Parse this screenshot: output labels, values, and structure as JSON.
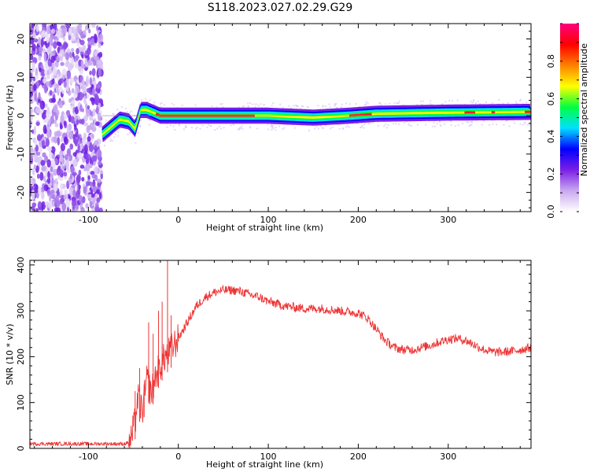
{
  "title": "S118.2023.027.02.29.G29",
  "chart_data": [
    {
      "type": "heatmap",
      "title": "S118.2023.027.02.29.G29",
      "xlabel": "Height of straight line (km)",
      "ylabel": "Frequency (Hz)",
      "xlim": [
        -165,
        392
      ],
      "ylim": [
        -25,
        24
      ],
      "xticks": [
        -100,
        0,
        100,
        200,
        300
      ],
      "yticks": [
        -20,
        -10,
        0,
        10,
        20
      ],
      "colorbar": {
        "label": "Normalized spectral amplitude",
        "range": [
          0,
          1
        ],
        "ticks": [
          0.0,
          0.2,
          0.4,
          0.6,
          0.8
        ],
        "colors": [
          "#ffffff",
          "#c9a8f0",
          "#7a1ee6",
          "#0000ff",
          "#00e0ff",
          "#00ff40",
          "#ffff00",
          "#ff8000",
          "#ff0000",
          "#ff0080"
        ]
      },
      "frequency_track": [
        {
          "x": -85,
          "f": -5
        },
        {
          "x": -75,
          "f": -3
        },
        {
          "x": -65,
          "f": -1
        },
        {
          "x": -55,
          "f": -1.5
        },
        {
          "x": -48,
          "f": -3.5
        },
        {
          "x": -42,
          "f": 1.5
        },
        {
          "x": -35,
          "f": 1.5
        },
        {
          "x": -20,
          "f": 0
        },
        {
          "x": 0,
          "f": 0
        },
        {
          "x": 100,
          "f": 0
        },
        {
          "x": 150,
          "f": -0.5
        },
        {
          "x": 190,
          "f": 0
        },
        {
          "x": 220,
          "f": 0.5
        },
        {
          "x": 300,
          "f": 0.8
        },
        {
          "x": 392,
          "f": 1
        }
      ],
      "noise_region_x": [
        -165,
        -85
      ]
    },
    {
      "type": "line",
      "xlabel": "Height of straight line (km)",
      "ylabel": "SNR (10 * v/v)",
      "xlim": [
        -165,
        392
      ],
      "ylim": [
        0,
        410
      ],
      "xticks": [
        -100,
        0,
        100,
        200,
        300
      ],
      "yticks": [
        0,
        100,
        200,
        300,
        400
      ],
      "color": "#ee3333",
      "series": [
        {
          "x": [
            -165,
            -120,
            -80,
            -60,
            -53,
            -48,
            -45,
            -40,
            -35,
            -30,
            -25,
            -20,
            -15,
            -10,
            -5,
            0,
            10,
            20,
            30,
            40,
            50,
            60,
            70,
            80,
            90,
            100,
            120,
            140,
            160,
            180,
            200,
            210,
            220,
            230,
            240,
            250,
            260,
            270,
            280,
            290,
            300,
            310,
            320,
            330,
            340,
            350,
            360,
            370,
            380,
            392
          ],
          "values": [
            10,
            10,
            10,
            10,
            15,
            60,
            110,
            80,
            150,
            120,
            160,
            180,
            200,
            210,
            225,
            240,
            275,
            310,
            330,
            340,
            345,
            345,
            342,
            335,
            330,
            320,
            310,
            305,
            305,
            300,
            295,
            285,
            260,
            235,
            220,
            215,
            215,
            220,
            225,
            232,
            238,
            240,
            235,
            225,
            215,
            210,
            210,
            212,
            215,
            220
          ],
          "spikes": [
            {
              "x": -48,
              "y": 125
            },
            {
              "x": -43,
              "y": 175
            },
            {
              "x": -38,
              "y": 140
            },
            {
              "x": -33,
              "y": 275
            },
            {
              "x": -28,
              "y": 250
            },
            {
              "x": -22,
              "y": 300
            },
            {
              "x": -18,
              "y": 320
            },
            {
              "x": -12,
              "y": 410
            },
            {
              "x": -8,
              "y": 290
            }
          ]
        }
      ]
    }
  ]
}
